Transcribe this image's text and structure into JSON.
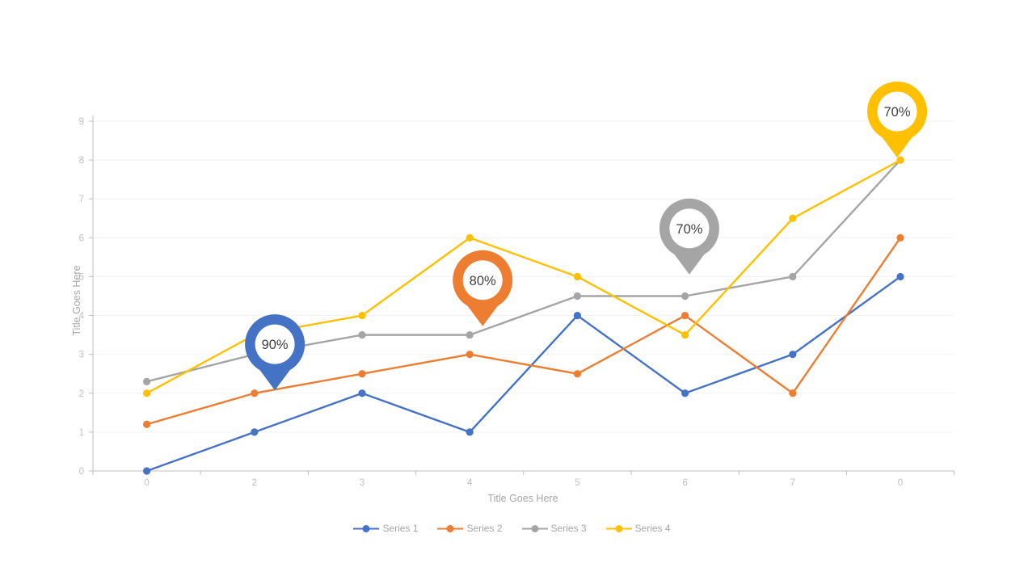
{
  "chart_data": {
    "type": "line",
    "title": "",
    "xlabel": "Title Goes Here",
    "ylabel": "Title Goes Here",
    "x_tick_labels": [
      "0",
      "2",
      "3",
      "4",
      "5",
      "6",
      "7",
      "0"
    ],
    "y_tick_labels": [
      "0",
      "1",
      "2",
      "3",
      "4",
      "5",
      "6",
      "7",
      "8",
      "9"
    ],
    "ylim": [
      0,
      9
    ],
    "grid": "horizontal",
    "legend_position": "bottom",
    "series": [
      {
        "name": "Series 1",
        "color": "#4472C4",
        "values": [
          0,
          1,
          2,
          1,
          4,
          2,
          3,
          5
        ]
      },
      {
        "name": "Series 2",
        "color": "#ED7D31",
        "values": [
          1.2,
          2,
          2.5,
          3,
          2.5,
          4,
          2,
          6
        ]
      },
      {
        "name": "Series 3",
        "color": "#A5A5A5",
        "values": [
          2.3,
          3,
          3.5,
          3.5,
          4.5,
          4.5,
          5,
          8
        ]
      },
      {
        "name": "Series 4",
        "color": "#FFC000",
        "values": [
          2,
          3.5,
          4,
          6,
          5,
          3.5,
          6.5,
          8
        ]
      }
    ],
    "callouts": [
      {
        "label": "90%",
        "color": "#4472C4",
        "cat": 1.19,
        "val": 3.26
      },
      {
        "label": "80%",
        "color": "#ED7D31",
        "cat": 3.12,
        "val": 4.91
      },
      {
        "label": "70%",
        "color": "#A5A5A5",
        "cat": 5.04,
        "val": 6.24
      },
      {
        "label": "70%",
        "color": "#FFC000",
        "cat": 6.97,
        "val": 9.25
      }
    ],
    "colors": {
      "axis": "#BFBFBF",
      "gridline": "#F2F2F2",
      "tick_label": "#BFBFBF",
      "axis_title": "#A6A6A6",
      "legend_text": "#A6A6A6",
      "callout_text": "#404040",
      "background": "#FFFFFF"
    }
  }
}
